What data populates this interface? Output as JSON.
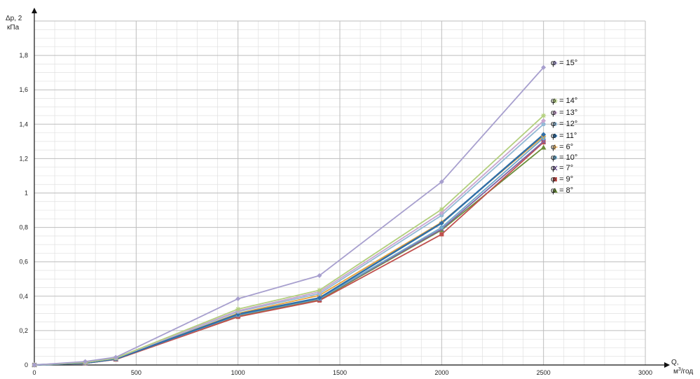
{
  "chart_data": {
    "type": "line",
    "x": [
      0,
      250,
      400,
      1000,
      1400,
      2000,
      2500
    ],
    "xlim": [
      0,
      3000
    ],
    "ylim": [
      0,
      2
    ],
    "x_ticks": [
      "0",
      "500",
      "1000",
      "1500",
      "2000",
      "2500",
      "3000"
    ],
    "y_ticks": [
      "0",
      "0,2",
      "0,4",
      "0,6",
      "0,8",
      "1",
      "1,2",
      "1,4",
      "1,6",
      "1,8"
    ],
    "ylabel": {
      "line1": "Δp, 2",
      "line2": "кПа"
    },
    "xlabel": {
      "line1": "Q,",
      "line2_pre": "м",
      "line2_sup": "3",
      "line2_post": "/год"
    },
    "grid": true,
    "legend_symbol": "φ",
    "series": [
      {
        "name": "= 15°",
        "color": "#a79fce",
        "marker": "diamond",
        "values": [
          0,
          0.02,
          0.045,
          0.385,
          0.52,
          1.065,
          1.73
        ]
      },
      {
        "name": "= 14°",
        "color": "#b3cf7e",
        "marker": "star",
        "values": [
          0,
          0.015,
          0.04,
          0.325,
          0.435,
          0.905,
          1.45
        ]
      },
      {
        "name": "= 13°",
        "color": "#c8a5cf",
        "marker": "diamond",
        "values": [
          0,
          0.015,
          0.04,
          0.315,
          0.425,
          0.885,
          1.42
        ]
      },
      {
        "name": "= 12°",
        "color": "#93b9d6",
        "marker": "circle",
        "values": [
          0,
          0.015,
          0.04,
          0.31,
          0.415,
          0.87,
          1.4
        ]
      },
      {
        "name": "= 11°",
        "color": "#2f6fa8",
        "marker": "diamond",
        "values": [
          0,
          0.012,
          0.035,
          0.295,
          0.39,
          0.825,
          1.34
        ]
      },
      {
        "name": "= 6°",
        "color": "#e8a33d",
        "marker": "cross",
        "values": [
          0,
          0.012,
          0.035,
          0.3,
          0.405,
          0.83,
          1.33
        ]
      },
      {
        "name": "= 10°",
        "color": "#6ea8c8",
        "marker": "circle",
        "values": [
          0,
          0.012,
          0.035,
          0.29,
          0.385,
          0.8,
          1.32
        ]
      },
      {
        "name": "= 7°",
        "color": "#7e63a6",
        "marker": "x",
        "values": [
          0,
          0.01,
          0.035,
          0.29,
          0.385,
          0.79,
          1.3
        ]
      },
      {
        "name": "= 9°",
        "color": "#c0504d",
        "marker": "square",
        "values": [
          0,
          0.01,
          0.032,
          0.28,
          0.375,
          0.76,
          1.295
        ]
      },
      {
        "name": "= 8°",
        "color": "#6b8e3a",
        "marker": "triangle",
        "values": [
          0,
          0.01,
          0.033,
          0.285,
          0.38,
          0.785,
          1.265
        ]
      }
    ]
  }
}
